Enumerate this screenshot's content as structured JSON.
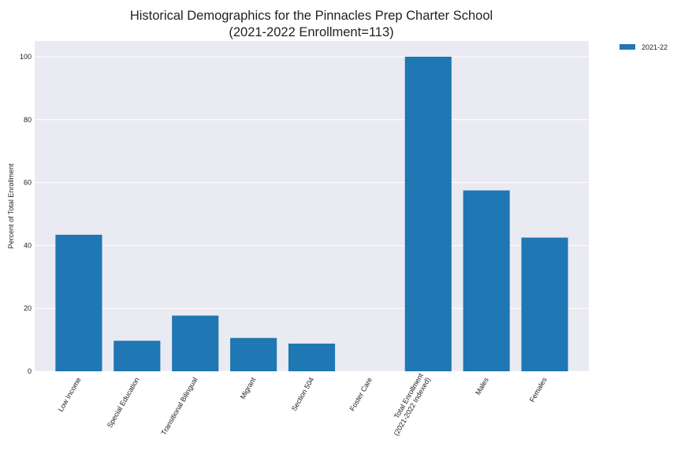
{
  "chart_data": {
    "type": "bar",
    "title": "Historical Demographics for the Pinnacles Prep Charter School",
    "subtitle": "(2021-2022 Enrollment=113)",
    "xlabel": "",
    "ylabel": "Percent of Total Enrollment",
    "ylim": [
      0,
      105
    ],
    "yticks": [
      0,
      20,
      40,
      60,
      80,
      100
    ],
    "grid": true,
    "legend_position": "outside-top-right",
    "categories": [
      "Low Income",
      "Special Education",
      "Transitional Bilingual",
      "Migrant",
      "Section 504",
      "Foster Care",
      "Total Enrollment\n(2021-2022 Indexed)",
      "Males",
      "Females"
    ],
    "series": [
      {
        "name": "2021-22",
        "color": "#1f77b4",
        "values": [
          43.4,
          9.7,
          17.7,
          10.6,
          8.8,
          0,
          100,
          57.5,
          42.5
        ]
      }
    ]
  }
}
